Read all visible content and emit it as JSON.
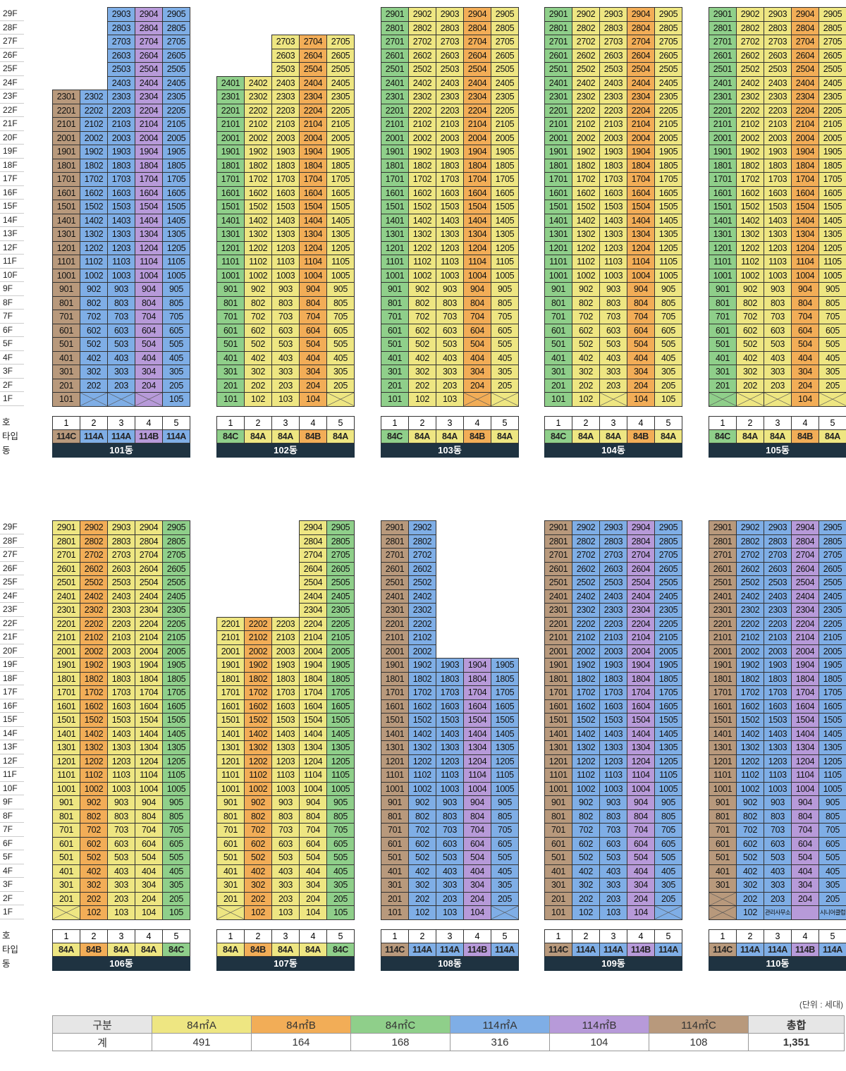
{
  "floor_label_suffix": "F",
  "row_labels": {
    "ho": "호",
    "type": "타입",
    "dong": "동"
  },
  "colors": {
    "84A": "#eee682",
    "84B": "#f2ad57",
    "84C": "#8fcf8a",
    "114A": "#7faee6",
    "114B": "#b79ad9",
    "114C": "#b8997c"
  },
  "buildings": [
    {
      "name": "101동",
      "types": [
        "114C",
        "114A",
        "114A",
        "114B",
        "114A"
      ],
      "floors": [
        [
          23,
          null,
          null,
          null,
          null
        ],
        [
          29,
          29,
          29,
          29,
          29
        ]
      ],
      "cols": [
        [
          1,
          23,
          "114C"
        ],
        [
          2,
          23,
          "114A"
        ],
        [
          3,
          29,
          "114A"
        ],
        [
          4,
          29,
          "114B"
        ],
        [
          5,
          29,
          "114A"
        ]
      ],
      "one_f": [
        "101",
        "",
        "",
        "",
        "105"
      ]
    },
    {
      "name": "102동",
      "types": [
        "84C",
        "84A",
        "84A",
        "84B",
        "84A"
      ],
      "cols": [
        [
          1,
          24,
          "84C"
        ],
        [
          2,
          24,
          "84A"
        ],
        [
          3,
          27,
          "84A"
        ],
        [
          4,
          27,
          "84B"
        ],
        [
          5,
          27,
          "84A"
        ]
      ],
      "one_f": [
        "101",
        "102",
        "103",
        "104",
        ""
      ]
    },
    {
      "name": "103동",
      "types": [
        "84C",
        "84A",
        "84A",
        "84B",
        "84A"
      ],
      "cols": [
        [
          1,
          29,
          "84C"
        ],
        [
          2,
          29,
          "84A"
        ],
        [
          3,
          29,
          "84A"
        ],
        [
          4,
          29,
          "84B"
        ],
        [
          5,
          29,
          "84A"
        ]
      ],
      "one_f": [
        "101",
        "102",
        "103",
        "",
        ""
      ]
    },
    {
      "name": "104동",
      "types": [
        "84C",
        "84A",
        "84A",
        "84B",
        "84A"
      ],
      "cols": [
        [
          1,
          29,
          "84C"
        ],
        [
          2,
          29,
          "84A"
        ],
        [
          3,
          29,
          "84A"
        ],
        [
          4,
          29,
          "84B"
        ],
        [
          5,
          29,
          "84A"
        ]
      ],
      "one_f": [
        "101",
        "102",
        "",
        "104",
        "105"
      ]
    },
    {
      "name": "105동",
      "types": [
        "84C",
        "84A",
        "84A",
        "84B",
        "84A"
      ],
      "cols": [
        [
          1,
          29,
          "84C"
        ],
        [
          2,
          29,
          "84A"
        ],
        [
          3,
          29,
          "84A"
        ],
        [
          4,
          29,
          "84B"
        ],
        [
          5,
          29,
          "84A"
        ]
      ],
      "one_f": [
        "",
        "",
        "",
        "104",
        ""
      ]
    },
    {
      "name": "106동",
      "types": [
        "84A",
        "84B",
        "84A",
        "84A",
        "84C"
      ],
      "cols": [
        [
          1,
          29,
          "84A"
        ],
        [
          2,
          29,
          "84B"
        ],
        [
          3,
          29,
          "84A"
        ],
        [
          4,
          29,
          "84A"
        ],
        [
          5,
          29,
          "84C"
        ]
      ],
      "one_f": [
        "",
        "102",
        "103",
        "104",
        "105"
      ]
    },
    {
      "name": "107동",
      "types": [
        "84A",
        "84B",
        "84A",
        "84A",
        "84C"
      ],
      "cols": [
        [
          1,
          22,
          "84A"
        ],
        [
          2,
          22,
          "84B"
        ],
        [
          3,
          22,
          "84A"
        ],
        [
          4,
          29,
          "84A"
        ],
        [
          5,
          29,
          "84C"
        ]
      ],
      "one_f": [
        "",
        "102",
        "103",
        "104",
        "105"
      ]
    },
    {
      "name": "108동",
      "types": [
        "114C",
        "114A",
        "114A",
        "114B",
        "114A"
      ],
      "cols": [
        [
          1,
          29,
          "114C"
        ],
        [
          2,
          29,
          "114A"
        ],
        [
          3,
          19,
          "114A"
        ],
        [
          4,
          19,
          "114B"
        ],
        [
          5,
          19,
          "114A"
        ]
      ],
      "one_f": [
        "101",
        "102",
        "103",
        "104",
        ""
      ]
    },
    {
      "name": "109동",
      "types": [
        "114C",
        "114A",
        "114A",
        "114B",
        "114A"
      ],
      "cols": [
        [
          1,
          29,
          "114C"
        ],
        [
          2,
          29,
          "114A"
        ],
        [
          3,
          29,
          "114A"
        ],
        [
          4,
          29,
          "114B"
        ],
        [
          5,
          29,
          "114A"
        ]
      ],
      "one_f": [
        "101",
        "102",
        "103",
        "104",
        ""
      ]
    },
    {
      "name": "110동",
      "types": [
        "114C",
        "114A",
        "114A",
        "114B",
        "114A"
      ],
      "cols": [
        [
          1,
          29,
          "114C"
        ],
        [
          2,
          29,
          "114A"
        ],
        [
          3,
          29,
          "114A"
        ],
        [
          4,
          29,
          "114B"
        ],
        [
          5,
          29,
          "114A"
        ]
      ],
      "one_f": [
        "",
        "102",
        "",
        "",
        ""
      ],
      "two_f_empty": [
        1
      ],
      "one_f_special": {
        "3": "관리사무소",
        "5": "시니어클럽"
      }
    }
  ],
  "unit_note": "(단위 : 세대)",
  "summary": {
    "header": [
      "구분",
      "84㎡A",
      "84㎡B",
      "84㎡C",
      "114㎡A",
      "114㎡B",
      "114㎡C",
      "총합"
    ],
    "row_label": "계",
    "values": [
      "491",
      "164",
      "168",
      "316",
      "104",
      "108",
      "1,351"
    ]
  }
}
